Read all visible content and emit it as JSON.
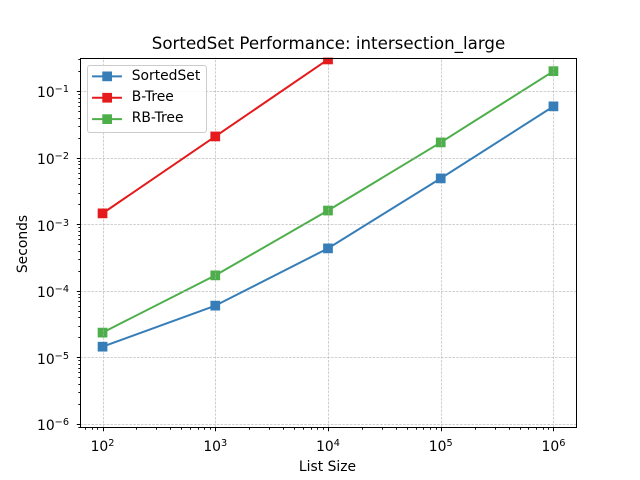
{
  "chart_data": {
    "type": "line",
    "title": "SortedSet Performance: intersection_large",
    "xlabel": "List Size",
    "ylabel": "Seconds",
    "xscale": "log",
    "yscale": "log",
    "xlim": [
      63.1,
      1584893
    ],
    "ylim": [
      8.95e-07,
      0.3197
    ],
    "grid": "major-both-dashed",
    "legend_position": "upper-left",
    "x_tick_exponents": [
      2,
      3,
      4,
      5,
      6
    ],
    "y_tick_exponents": [
      -6,
      -5,
      -4,
      -3,
      -2,
      -1
    ],
    "series": [
      {
        "name": "SortedSet",
        "color": "#377eb8",
        "marker": "square",
        "x": [
          100,
          1000,
          10000,
          100000,
          1000000
        ],
        "values": [
          1.45e-05,
          6e-05,
          0.000435,
          0.0049,
          0.0592
        ]
      },
      {
        "name": "B-Tree",
        "color": "#e41a1c",
        "marker": "square",
        "x": [
          100,
          1000,
          10000
        ],
        "values": [
          0.00146,
          0.0209,
          0.3
        ]
      },
      {
        "name": "RB-Tree",
        "color": "#4daf4a",
        "marker": "square",
        "x": [
          100,
          1000,
          10000,
          100000,
          1000000
        ],
        "values": [
          2.36e-05,
          0.000171,
          0.00161,
          0.017,
          0.2
        ]
      }
    ],
    "styles": {
      "grid_color": "#b0b0b0",
      "grid_opacity": 0.6,
      "spine_color": "#000000",
      "text_color": "#000000",
      "legend_border_color": "#cccccc"
    }
  }
}
